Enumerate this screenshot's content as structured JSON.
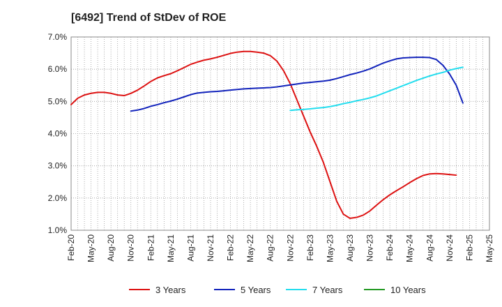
{
  "chart_data": {
    "type": "line",
    "title": "[6492]  Trend of StDev of ROE",
    "xlabel": "",
    "ylabel": "",
    "ylim": [
      1.0,
      7.0
    ],
    "yticks": [
      "1.0%",
      "2.0%",
      "3.0%",
      "4.0%",
      "5.0%",
      "6.0%",
      "7.0%"
    ],
    "xticks": [
      "Feb-20",
      "May-20",
      "Aug-20",
      "Nov-20",
      "Feb-21",
      "May-21",
      "Aug-21",
      "Nov-21",
      "Feb-22",
      "May-22",
      "Aug-22",
      "Nov-22",
      "Feb-23",
      "May-23",
      "Aug-23",
      "Nov-23",
      "Feb-24",
      "May-24",
      "Aug-24",
      "Nov-24",
      "Feb-25",
      "May-25"
    ],
    "grid": true,
    "legend_position": "bottom",
    "series": [
      {
        "name": "3 Years",
        "color": "#dd1111",
        "x": [
          0,
          1,
          2,
          3,
          4,
          5,
          6,
          7,
          8,
          9,
          10,
          11,
          12,
          13,
          14,
          15,
          16,
          17,
          18,
          19,
          20,
          21,
          22,
          23,
          24,
          25,
          26,
          27,
          28,
          29,
          30,
          31,
          32,
          33,
          34,
          35,
          36,
          37,
          38,
          39,
          40,
          41,
          42,
          43,
          44,
          45,
          46,
          47,
          48,
          49,
          50,
          51,
          52,
          53,
          54,
          55,
          56,
          57,
          58,
          59,
          60
        ],
        "values": [
          4.9,
          5.1,
          5.2,
          5.25,
          5.28,
          5.28,
          5.25,
          5.2,
          5.18,
          5.25,
          5.35,
          5.48,
          5.62,
          5.73,
          5.8,
          5.86,
          5.95,
          6.05,
          6.15,
          6.22,
          6.28,
          6.32,
          6.37,
          6.43,
          6.49,
          6.53,
          6.55,
          6.55,
          6.53,
          6.5,
          6.42,
          6.25,
          5.95,
          5.55,
          5.05,
          4.55,
          4.05,
          3.6,
          3.1,
          2.5,
          1.9,
          1.5,
          1.37,
          1.4,
          1.47,
          1.6,
          1.78,
          1.95,
          2.1,
          2.23,
          2.35,
          2.48,
          2.6,
          2.7,
          2.75,
          2.76,
          2.75,
          2.73,
          2.71,
          null,
          null
        ]
      },
      {
        "name": "5 Years",
        "color": "#1122bb",
        "x": [
          9,
          10,
          11,
          12,
          13,
          14,
          15,
          16,
          17,
          18,
          19,
          20,
          21,
          22,
          23,
          24,
          25,
          26,
          27,
          28,
          29,
          30,
          31,
          32,
          33,
          34,
          35,
          36,
          37,
          38,
          39,
          40,
          41,
          42,
          43,
          44,
          45,
          46,
          47,
          48,
          49,
          50,
          51,
          52,
          53,
          54,
          55,
          56,
          57,
          58,
          59
        ],
        "values": [
          4.7,
          4.73,
          4.78,
          4.85,
          4.9,
          4.96,
          5.01,
          5.07,
          5.14,
          5.21,
          5.26,
          5.28,
          5.3,
          5.31,
          5.33,
          5.35,
          5.37,
          5.39,
          5.4,
          5.41,
          5.42,
          5.43,
          5.45,
          5.48,
          5.51,
          5.54,
          5.57,
          5.59,
          5.61,
          5.63,
          5.66,
          5.71,
          5.77,
          5.83,
          5.88,
          5.94,
          6.01,
          6.1,
          6.19,
          6.26,
          6.32,
          6.35,
          6.36,
          6.37,
          6.37,
          6.36,
          6.3,
          6.12,
          5.85,
          5.5,
          4.95
        ]
      },
      {
        "name": "7 Years",
        "color": "#22ddee",
        "x": [
          33,
          34,
          35,
          36,
          37,
          38,
          39,
          40,
          41,
          42,
          43,
          44,
          45,
          46,
          47,
          48,
          49,
          50,
          51,
          52,
          53,
          54,
          55,
          56,
          57,
          58,
          59
        ],
        "values": [
          4.72,
          4.74,
          4.75,
          4.77,
          4.79,
          4.81,
          4.84,
          4.88,
          4.93,
          4.97,
          5.02,
          5.06,
          5.11,
          5.17,
          5.25,
          5.33,
          5.41,
          5.49,
          5.57,
          5.65,
          5.72,
          5.79,
          5.85,
          5.9,
          5.97,
          6.02,
          6.06
        ]
      },
      {
        "name": "10 Years",
        "color": "#229922",
        "x": [],
        "values": []
      }
    ]
  }
}
